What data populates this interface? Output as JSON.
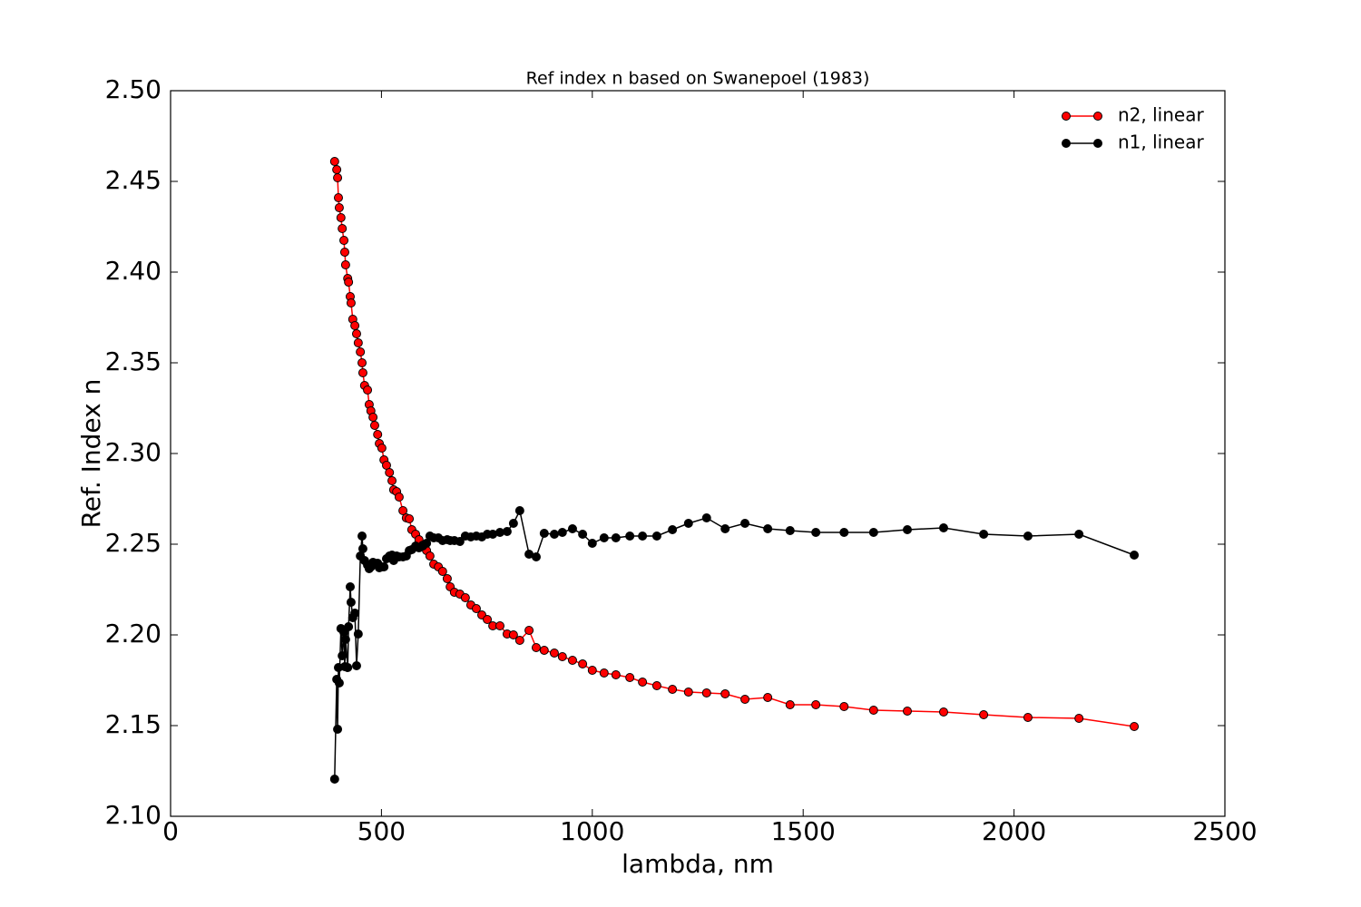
{
  "chart_data": {
    "type": "line",
    "title": "Ref index n based on Swanepoel (1983)",
    "x_label": "lambda, nm",
    "y_label": "Ref. Index n",
    "x": [
      389,
      394,
      396,
      398,
      400,
      404,
      407,
      411,
      413,
      415,
      420,
      422,
      426,
      428,
      432,
      437,
      441,
      445,
      450,
      454,
      456,
      460,
      467,
      471,
      475,
      480,
      484,
      491,
      495,
      501,
      506,
      512,
      519,
      525,
      529,
      536,
      542,
      551,
      559,
      566,
      572,
      581,
      589,
      598,
      607,
      615,
      624,
      635,
      645,
      656,
      663,
      673,
      686,
      699,
      712,
      725,
      738,
      751,
      764,
      781,
      798,
      813,
      828,
      850,
      867,
      886,
      910,
      929,
      953,
      977,
      1000,
      1028,
      1056,
      1089,
      1119,
      1153,
      1190,
      1228,
      1271,
      1315,
      1362,
      1416,
      1469,
      1530,
      1597,
      1667,
      1747,
      1833,
      1928,
      2033,
      2154,
      2285
    ],
    "series": [
      {
        "name": "n2, linear",
        "color": "#ff0000",
        "values": [
          2.461,
          2.4565,
          2.452,
          2.441,
          2.4355,
          2.43,
          2.424,
          2.4175,
          2.411,
          2.404,
          2.3965,
          2.3945,
          2.3865,
          2.383,
          2.374,
          2.3705,
          2.366,
          2.361,
          2.356,
          2.35,
          2.3445,
          2.3375,
          2.335,
          2.327,
          2.3235,
          2.32,
          2.3155,
          2.3105,
          2.3055,
          2.303,
          2.2965,
          2.2935,
          2.2895,
          2.285,
          2.28,
          2.279,
          2.276,
          2.2685,
          2.2645,
          2.264,
          2.258,
          2.2555,
          2.2525,
          2.2495,
          2.2465,
          2.2435,
          2.239,
          2.2375,
          2.235,
          2.231,
          2.2265,
          2.2235,
          2.2225,
          2.2205,
          2.2165,
          2.2145,
          2.211,
          2.2085,
          2.205,
          2.205,
          2.2005,
          2.2,
          2.197,
          2.2025,
          2.193,
          2.1915,
          2.19,
          2.188,
          2.186,
          2.184,
          2.1805,
          2.179,
          2.178,
          2.1765,
          2.174,
          2.172,
          2.17,
          2.1685,
          2.168,
          2.1675,
          2.1645,
          2.1655,
          2.1615,
          2.1615,
          2.1605,
          2.1585,
          2.158,
          2.1575,
          2.156,
          2.1545,
          2.154,
          2.1495
        ]
      },
      {
        "name": "n1, linear",
        "color": "#000000",
        "values": [
          2.1205,
          2.1755,
          2.148,
          2.182,
          2.1735,
          2.2035,
          2.1885,
          2.2015,
          2.1825,
          2.1975,
          2.182,
          2.2045,
          2.2265,
          2.218,
          2.2095,
          2.212,
          2.183,
          2.2005,
          2.2435,
          2.2545,
          2.2475,
          2.241,
          2.2385,
          2.2365,
          2.2375,
          2.24,
          2.2395,
          2.2395,
          2.237,
          2.2375,
          2.2375,
          2.242,
          2.2435,
          2.244,
          2.241,
          2.2435,
          2.243,
          2.243,
          2.2435,
          2.2465,
          2.247,
          2.249,
          2.248,
          2.249,
          2.2505,
          2.2545,
          2.2535,
          2.2535,
          2.252,
          2.2525,
          2.252,
          2.252,
          2.2515,
          2.2545,
          2.254,
          2.2545,
          2.254,
          2.2555,
          2.2555,
          2.2565,
          2.257,
          2.2615,
          2.2685,
          2.2445,
          2.243,
          2.256,
          2.2555,
          2.2565,
          2.2585,
          2.2555,
          2.2505,
          2.2535,
          2.2535,
          2.2545,
          2.2545,
          2.2545,
          2.258,
          2.2615,
          2.2645,
          2.2585,
          2.2615,
          2.2585,
          2.2575,
          2.2565,
          2.2565,
          2.2565,
          2.258,
          2.259,
          2.2555,
          2.2545,
          2.2555,
          2.244
        ]
      }
    ],
    "xlim": [
      0,
      2500
    ],
    "xticks": [
      0,
      500,
      1000,
      1500,
      2000,
      2500
    ],
    "ylim": [
      2.1,
      2.5
    ],
    "yticks": [
      {
        "value": 2.1,
        "label": "2.10"
      },
      2.15,
      {
        "value": 2.2,
        "label": "2.20"
      },
      2.25,
      {
        "value": 2.3,
        "label": "2.30"
      },
      2.35,
      {
        "value": 2.4,
        "label": "2.40"
      },
      2.45,
      {
        "value": 2.5,
        "label": "2.50"
      }
    ],
    "grid": false,
    "legend": "upper right"
  }
}
